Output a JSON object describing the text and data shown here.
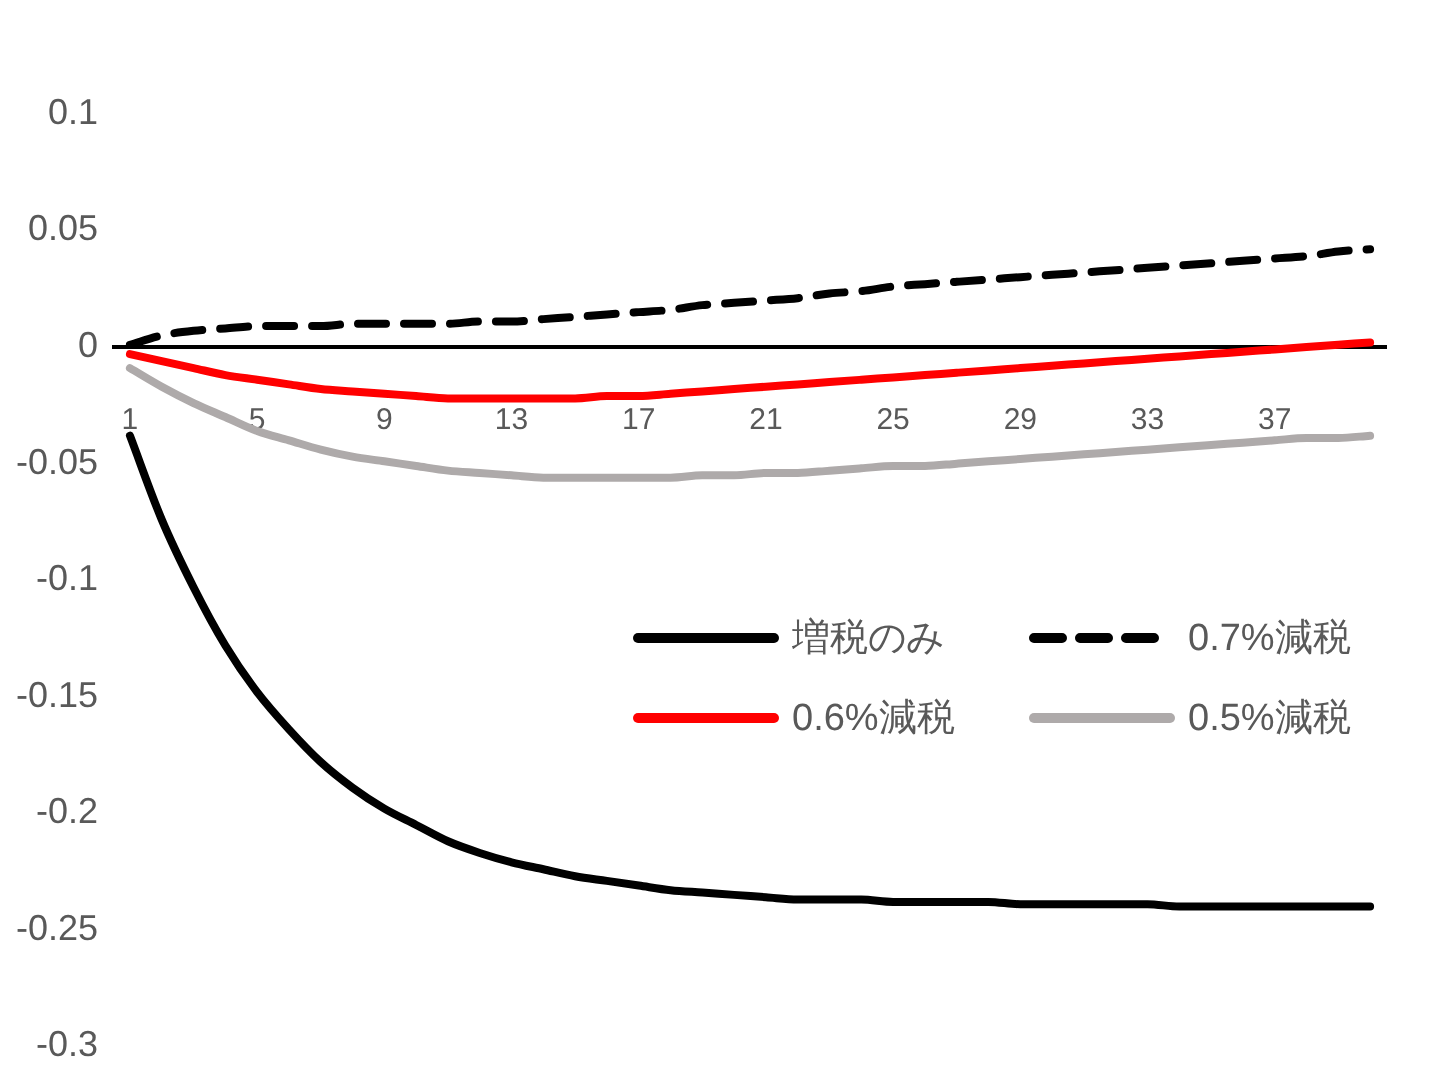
{
  "chart_data": {
    "type": "line",
    "categories": [
      "1",
      null,
      null,
      null,
      "5",
      null,
      null,
      null,
      "9",
      null,
      null,
      null,
      "13",
      null,
      null,
      null,
      "17",
      null,
      null,
      null,
      "21",
      null,
      null,
      null,
      "25",
      null,
      null,
      null,
      "29",
      null,
      null,
      null,
      "33",
      null,
      null,
      null,
      "37",
      null,
      null,
      null
    ],
    "series": [
      {
        "name": "増税のみ",
        "color": "#000000",
        "line_style": "solid",
        "values": [
          -0.038,
          -0.074,
          -0.103,
          -0.128,
          -0.148,
          -0.164,
          -0.178,
          -0.189,
          -0.198,
          -0.205,
          -0.212,
          -0.217,
          -0.221,
          -0.224,
          -0.227,
          -0.229,
          -0.231,
          -0.233,
          -0.234,
          -0.235,
          -0.236,
          -0.237,
          -0.237,
          -0.237,
          -0.238,
          -0.238,
          -0.238,
          -0.238,
          -0.239,
          -0.239,
          -0.239,
          -0.239,
          -0.239,
          -0.24,
          -0.24,
          -0.24,
          -0.24,
          -0.24,
          -0.24,
          -0.24
        ]
      },
      {
        "name": "0.7%減税",
        "color": "#000000",
        "line_style": "dashed",
        "values": [
          0.001,
          0.005,
          0.007,
          0.008,
          0.009,
          0.009,
          0.009,
          0.01,
          0.01,
          0.01,
          0.01,
          0.011,
          0.011,
          0.012,
          0.013,
          0.014,
          0.015,
          0.016,
          0.018,
          0.019,
          0.02,
          0.021,
          0.023,
          0.024,
          0.026,
          0.027,
          0.028,
          0.029,
          0.03,
          0.031,
          0.032,
          0.033,
          0.034,
          0.035,
          0.036,
          0.037,
          0.038,
          0.039,
          0.041,
          0.042
        ]
      },
      {
        "name": "0.6%減税",
        "color": "#ff0000",
        "line_style": "solid",
        "values": [
          -0.003,
          -0.006,
          -0.009,
          -0.012,
          -0.014,
          -0.016,
          -0.018,
          -0.019,
          -0.02,
          -0.021,
          -0.022,
          -0.022,
          -0.022,
          -0.022,
          -0.022,
          -0.021,
          -0.021,
          -0.02,
          -0.019,
          -0.018,
          -0.017,
          -0.016,
          -0.015,
          -0.014,
          -0.013,
          -0.012,
          -0.011,
          -0.01,
          -0.009,
          -0.008,
          -0.007,
          -0.006,
          -0.005,
          -0.004,
          -0.003,
          -0.002,
          -0.001,
          0,
          0.001,
          0.002
        ]
      },
      {
        "name": "0.5%減税",
        "color": "#aeaaaa",
        "line_style": "solid",
        "values": [
          -0.009,
          -0.017,
          -0.024,
          -0.03,
          -0.036,
          -0.04,
          -0.044,
          -0.047,
          -0.049,
          -0.051,
          -0.053,
          -0.054,
          -0.055,
          -0.056,
          -0.056,
          -0.056,
          -0.056,
          -0.056,
          -0.055,
          -0.055,
          -0.054,
          -0.054,
          -0.053,
          -0.052,
          -0.051,
          -0.051,
          -0.05,
          -0.049,
          -0.048,
          -0.047,
          -0.046,
          -0.045,
          -0.044,
          -0.043,
          -0.042,
          -0.041,
          -0.04,
          -0.039,
          -0.039,
          -0.038
        ]
      }
    ],
    "ylim": [
      -0.3,
      0.1
    ],
    "yticks": [
      -0.3,
      -0.25,
      -0.2,
      -0.15,
      -0.1,
      -0.05,
      0,
      0.05,
      0.1
    ],
    "grid": false,
    "legend": "right",
    "marker": "none"
  }
}
